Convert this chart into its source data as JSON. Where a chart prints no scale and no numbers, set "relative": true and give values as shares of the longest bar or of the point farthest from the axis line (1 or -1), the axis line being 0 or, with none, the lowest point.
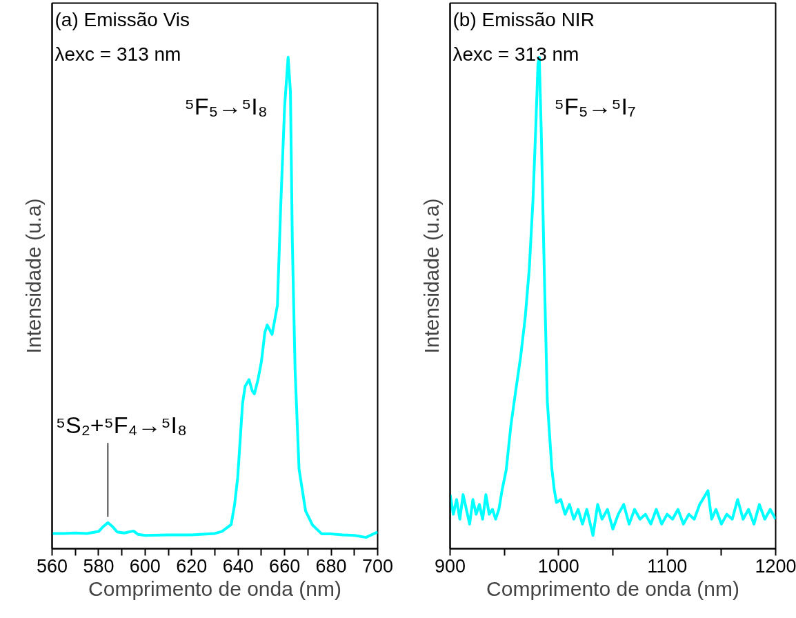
{
  "chart_data": [
    {
      "type": "line",
      "relative": true,
      "xlabel": "Comprimento de onda (nm)",
      "ylabel": "Intensidade (u.a)",
      "tick_labels": "x",
      "grid": false,
      "marker": "none",
      "line_style": "solid",
      "xlim": [
        560,
        700
      ],
      "xticks": [
        560,
        {
          "value": 570,
          "label": null
        },
        580,
        {
          "value": 590,
          "label": null
        },
        600,
        {
          "value": 610,
          "label": null
        },
        620,
        {
          "value": 630,
          "label": null
        },
        640,
        {
          "value": 650,
          "label": null
        },
        660,
        {
          "value": 670,
          "label": null
        },
        680,
        {
          "value": 690,
          "label": null
        },
        700
      ],
      "annotations": [
        "(a) Emissão Vis",
        "λexc = 313 nm",
        {
          "text": "⁵F₅→⁵I₈",
          "x": 661.5,
          "y": 1.0
        },
        {
          "text": "⁵S₂+⁵F₄→⁵I₈",
          "x": 584,
          "y": 0.055
        }
      ],
      "x": [
        560,
        565,
        570,
        575,
        580,
        582,
        584,
        586,
        588,
        591,
        595,
        597,
        600,
        610,
        620,
        630,
        633,
        635,
        637,
        638.5,
        639.8,
        641,
        641.9,
        643,
        644.7,
        646,
        647,
        648.5,
        650,
        651.5,
        652.5,
        654.6,
        656.9,
        658.3,
        660,
        661.5,
        662.5,
        663.3,
        664.5,
        666.2,
        669,
        672,
        676,
        680,
        685,
        690,
        695,
        700
      ],
      "series": [
        {
          "color": "#00ffff",
          "values": [
            0.031,
            0.031,
            0.032,
            0.031,
            0.035,
            0.045,
            0.053,
            0.045,
            0.034,
            0.032,
            0.036,
            0.029,
            0.027,
            0.028,
            0.028,
            0.031,
            0.035,
            0.042,
            0.049,
            0.09,
            0.144,
            0.23,
            0.295,
            0.33,
            0.344,
            0.322,
            0.315,
            0.343,
            0.38,
            0.44,
            0.455,
            0.436,
            0.495,
            0.695,
            0.9,
            1.0,
            0.93,
            0.628,
            0.363,
            0.162,
            0.077,
            0.048,
            0.03,
            0.03,
            0.028,
            0.027,
            0.023,
            0.034
          ]
        }
      ]
    },
    {
      "type": "line",
      "relative": true,
      "xlabel": "Comprimento de onda (nm)",
      "ylabel": "Intensidade (u.a)",
      "tick_labels": "x",
      "grid": false,
      "marker": "none",
      "line_style": "solid",
      "xlim": [
        900,
        1200
      ],
      "xticks": [
        900,
        {
          "value": 950,
          "label": null
        },
        1000,
        {
          "value": 1050,
          "label": null
        },
        1100,
        {
          "value": 1150,
          "label": null
        },
        1200
      ],
      "annotations": [
        "(b) Emissão NIR",
        "λexc = 313 nm",
        {
          "text": "⁵F₅→⁵I₇",
          "x": 982.2,
          "y": 1.0
        }
      ],
      "x": [
        900,
        903,
        906,
        909,
        912,
        915,
        918,
        921,
        924,
        927,
        930,
        933,
        936,
        939,
        942,
        945,
        948,
        951.7,
        956,
        960.4,
        965,
        969.2,
        973,
        976.4,
        979,
        981,
        982.2,
        984,
        986.7,
        989.6,
        993.8,
        996,
        998,
        1002,
        1006,
        1010,
        1014,
        1018,
        1022,
        1026,
        1031.7,
        1036,
        1040,
        1045,
        1050,
        1055,
        1060,
        1065,
        1070,
        1075,
        1080,
        1085,
        1090,
        1095,
        1100,
        1105,
        1110,
        1115,
        1120,
        1125,
        1130,
        1137.6,
        1141,
        1145,
        1150,
        1155,
        1160,
        1165,
        1170,
        1175,
        1180,
        1185,
        1190,
        1195,
        1200
      ],
      "series": [
        {
          "color": "#00ffff",
          "values": [
            0.11,
            0.07,
            0.1,
            0.06,
            0.11,
            0.08,
            0.05,
            0.1,
            0.07,
            0.09,
            0.06,
            0.11,
            0.07,
            0.08,
            0.06,
            0.08,
            0.12,
            0.16,
            0.25,
            0.32,
            0.39,
            0.47,
            0.57,
            0.71,
            0.86,
            0.986,
            1.0,
            0.85,
            0.574,
            0.3,
            0.162,
            0.12,
            0.094,
            0.1,
            0.07,
            0.09,
            0.06,
            0.08,
            0.05,
            0.08,
            0.027,
            0.09,
            0.06,
            0.08,
            0.04,
            0.07,
            0.09,
            0.05,
            0.08,
            0.06,
            0.07,
            0.05,
            0.08,
            0.05,
            0.07,
            0.06,
            0.08,
            0.05,
            0.07,
            0.06,
            0.09,
            0.118,
            0.06,
            0.08,
            0.05,
            0.07,
            0.06,
            0.1,
            0.06,
            0.08,
            0.05,
            0.09,
            0.06,
            0.08,
            0.06
          ]
        }
      ]
    }
  ]
}
